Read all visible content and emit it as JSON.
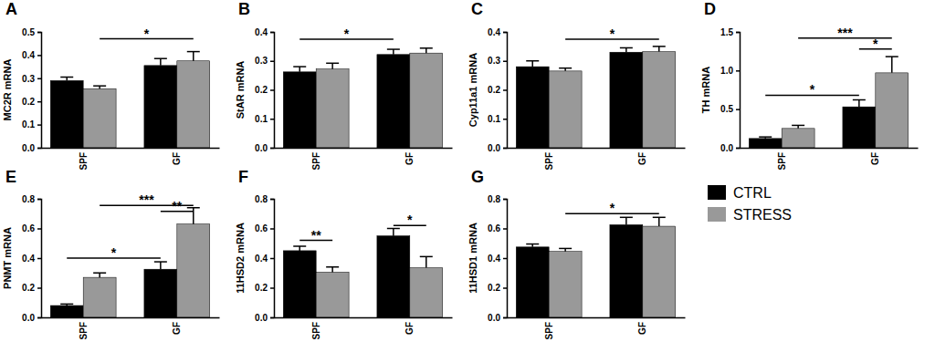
{
  "chart_data": [
    {
      "type": "bar",
      "title": "A",
      "y_label": "MC2R mRNA",
      "categories": [
        "SPF",
        "GF"
      ],
      "series": [
        {
          "color": "#000000",
          "values": [
            0.29,
            0.355
          ],
          "errors": [
            0.015,
            0.03
          ]
        },
        {
          "color": "#999999",
          "values": [
            0.255,
            0.375
          ],
          "errors": [
            0.012,
            0.04
          ]
        }
      ],
      "ylim": [
        0,
        0.5
      ],
      "yticks": [
        {
          "value": 0,
          "label": "0.0"
        },
        0.1,
        0.2,
        0.3,
        0.4,
        0.5
      ],
      "annotations": [
        {
          "text": "*",
          "y": 0.47,
          "from": [
            0,
            1
          ],
          "to": [
            1,
            1
          ]
        }
      ]
    },
    {
      "type": "bar",
      "title": "B",
      "y_label": "StAR mRNA",
      "categories": [
        "SPF",
        "GF"
      ],
      "series": [
        {
          "color": "#000000",
          "values": [
            0.262,
            0.322
          ],
          "errors": [
            0.018,
            0.018
          ]
        },
        {
          "color": "#999999",
          "values": [
            0.272,
            0.327
          ],
          "errors": [
            0.02,
            0.017
          ]
        }
      ],
      "ylim": [
        0,
        0.4
      ],
      "yticks": [
        {
          "value": 0,
          "label": "0.0"
        },
        0.1,
        0.2,
        0.3,
        0.4
      ],
      "annotations": [
        {
          "text": "*",
          "y": 0.375,
          "from": [
            0,
            0
          ],
          "to": [
            1,
            0
          ]
        }
      ]
    },
    {
      "type": "bar",
      "title": "C",
      "y_label": "Cyp11a1 mRNA",
      "categories": [
        "SPF",
        "GF"
      ],
      "series": [
        {
          "color": "#000000",
          "values": [
            0.28,
            0.33
          ],
          "errors": [
            0.02,
            0.015
          ]
        },
        {
          "color": "#999999",
          "values": [
            0.265,
            0.332
          ],
          "errors": [
            0.01,
            0.018
          ]
        }
      ],
      "ylim": [
        0,
        0.4
      ],
      "yticks": [
        {
          "value": 0,
          "label": "0.0"
        },
        0.1,
        0.2,
        0.3,
        0.4
      ],
      "annotations": [
        {
          "text": "*",
          "y": 0.375,
          "from": [
            0,
            1
          ],
          "to": [
            1,
            1
          ]
        }
      ]
    },
    {
      "type": "bar",
      "title": "D",
      "y_label": "TH mRNA",
      "categories": [
        "SPF",
        "GF"
      ],
      "series": [
        {
          "color": "#000000",
          "values": [
            0.12,
            0.53
          ],
          "errors": [
            0.02,
            0.09
          ]
        },
        {
          "color": "#999999",
          "values": [
            0.25,
            0.97
          ],
          "errors": [
            0.04,
            0.21
          ]
        }
      ],
      "ylim": [
        0,
        1.5
      ],
      "yticks": [
        {
          "value": 0,
          "label": "0.0"
        },
        0.5,
        {
          "value": 1,
          "label": "1.0"
        },
        1.5
      ],
      "annotations": [
        {
          "text": "*",
          "y": 0.68,
          "from": [
            0,
            0
          ],
          "to": [
            1,
            0
          ]
        },
        {
          "text": "*",
          "y": 1.28,
          "from": [
            1,
            0
          ],
          "to": [
            1,
            1
          ]
        },
        {
          "text": "***",
          "y": 1.42,
          "from": [
            0,
            1
          ],
          "to": [
            1,
            1
          ]
        }
      ]
    },
    {
      "type": "bar",
      "title": "E",
      "y_label": "PNMT mRNA",
      "categories": [
        "SPF",
        "GF"
      ],
      "series": [
        {
          "color": "#000000",
          "values": [
            0.08,
            0.325
          ],
          "errors": [
            0.01,
            0.05
          ]
        },
        {
          "color": "#999999",
          "values": [
            0.27,
            0.63
          ],
          "errors": [
            0.03,
            0.11
          ]
        }
      ],
      "ylim": [
        0,
        0.8
      ],
      "yticks": [
        {
          "value": 0,
          "label": "0.0"
        },
        0.2,
        0.4,
        0.6,
        0.8
      ],
      "annotations": [
        {
          "text": "*",
          "y": 0.4,
          "from": [
            0,
            0
          ],
          "to": [
            1,
            0
          ]
        },
        {
          "text": "**",
          "y": 0.715,
          "from": [
            1,
            0
          ],
          "to": [
            1,
            1
          ]
        },
        {
          "text": "***",
          "y": 0.755,
          "from": [
            0,
            1
          ],
          "to": [
            1,
            1
          ]
        }
      ]
    },
    {
      "type": "bar",
      "title": "F",
      "y_label": "11HSD2 mRNA",
      "categories": [
        "SPF",
        "GF"
      ],
      "series": [
        {
          "color": "#000000",
          "values": [
            0.45,
            0.55
          ],
          "errors": [
            0.03,
            0.05
          ]
        },
        {
          "color": "#999999",
          "values": [
            0.305,
            0.335
          ],
          "errors": [
            0.035,
            0.075
          ]
        }
      ],
      "ylim": [
        0,
        0.8
      ],
      "yticks": [
        {
          "value": 0,
          "label": "0.0"
        },
        0.2,
        0.4,
        0.6,
        0.8
      ],
      "annotations": [
        {
          "text": "**",
          "y": 0.52,
          "from": [
            0,
            0
          ],
          "to": [
            0,
            1
          ]
        },
        {
          "text": "*",
          "y": 0.62,
          "from": [
            1,
            0
          ],
          "to": [
            1,
            1
          ]
        }
      ]
    },
    {
      "type": "bar",
      "title": "G",
      "y_label": "11HSD1 mRNA",
      "categories": [
        "SPF",
        "GF"
      ],
      "series": [
        {
          "name": "CTRL",
          "color": "#000000",
          "values": [
            0.475,
            0.625
          ],
          "errors": [
            0.02,
            0.05
          ]
        },
        {
          "name": "STRESS",
          "color": "#999999",
          "values": [
            0.445,
            0.615
          ],
          "errors": [
            0.02,
            0.06
          ]
        }
      ],
      "ylim": [
        0,
        0.8
      ],
      "yticks": [
        {
          "value": 0,
          "label": "0.0"
        },
        0.2,
        0.4,
        0.6,
        0.8
      ],
      "annotations": [
        {
          "text": "*",
          "y": 0.7,
          "from": [
            0,
            1
          ],
          "to": [
            1,
            1
          ]
        }
      ],
      "legend": "right"
    }
  ]
}
